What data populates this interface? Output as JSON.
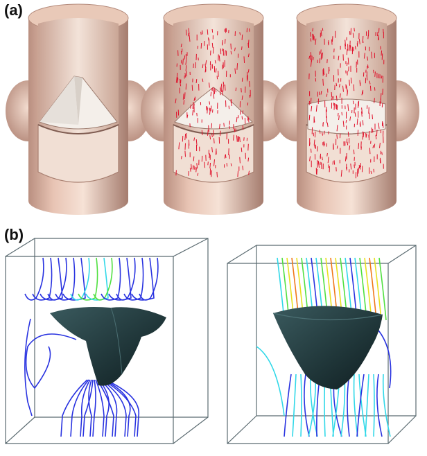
{
  "panels": {
    "a": {
      "label": "(a)"
    },
    "b": {
      "label": "(b)"
    }
  },
  "colors": {
    "vessel_outer": "#e8c4b4",
    "vessel_inner": "#f6e6dc",
    "vessel_shadow": "#b98f80",
    "vector_red": "#e0102a",
    "leaflet_white": "#f4f0ec",
    "valve_dark": "#22383c",
    "stream_blue": "#2832e0",
    "stream_cyan": "#30d8e8",
    "stream_green": "#50e040",
    "stream_yellow": "#e8e020",
    "stream_orange": "#f07818",
    "box_edge": "#5a6a70"
  }
}
